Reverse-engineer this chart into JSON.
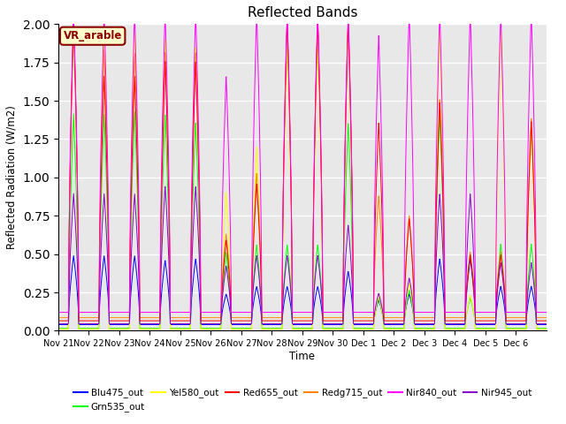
{
  "title": "Reflected Bands",
  "xlabel": "Time",
  "ylabel": "Reflected Radiation (W/m2)",
  "ylim": [
    0,
    2.0
  ],
  "annotation_text": "VR_arable",
  "series_colors": {
    "Blu475_out": "#0000ff",
    "Grn535_out": "#00ff00",
    "Yel580_out": "#ffff00",
    "Red655_out": "#ff0000",
    "Redg715_out": "#ff8800",
    "Nir840_out": "#ff00ff",
    "Nir945_out": "#8800cc"
  },
  "background_color": "#e8e8e8",
  "tick_labels": [
    "Nov 21",
    "Nov 22",
    "Nov 23",
    "Nov 24",
    "Nov 25",
    "Nov 26",
    "Nov 27",
    "Nov 28",
    "Nov 29",
    "Nov 30",
    "Dec 1",
    "Dec 2",
    "Dec 3",
    "Dec 4",
    "Dec 5",
    "Dec 6"
  ],
  "day_peaks_blu": [
    0.45,
    0.45,
    0.45,
    0.42,
    0.43,
    0.2,
    0.25,
    0.25,
    0.25,
    0.35,
    0.16,
    0.2,
    0.43,
    0.43,
    0.25,
    0.25
  ],
  "day_peaks_grn": [
    1.4,
    1.4,
    1.42,
    1.4,
    1.35,
    0.5,
    0.55,
    0.55,
    0.55,
    1.35,
    0.2,
    0.25,
    1.4,
    0.2,
    0.55,
    0.55
  ],
  "day_peaks_yel": [
    1.97,
    1.94,
    1.94,
    1.9,
    1.85,
    0.9,
    1.2,
    1.85,
    1.85,
    1.95,
    0.22,
    0.3,
    1.97,
    0.22,
    1.95,
    1.3
  ],
  "day_peaks_red": [
    1.97,
    1.6,
    1.6,
    1.7,
    1.7,
    0.53,
    0.9,
    1.97,
    1.97,
    1.97,
    1.3,
    0.67,
    1.43,
    0.43,
    0.43,
    1.3
  ],
  "day_peaks_redg": [
    1.97,
    1.75,
    1.73,
    1.74,
    1.74,
    0.55,
    0.95,
    1.97,
    1.97,
    1.97,
    0.8,
    0.67,
    1.43,
    0.43,
    0.43,
    1.3
  ],
  "day_peaks_nir840": [
    1.97,
    1.97,
    1.97,
    1.97,
    1.97,
    1.55,
    1.97,
    1.97,
    1.97,
    1.97,
    1.82,
    1.97,
    1.97,
    1.97,
    1.97,
    1.97
  ],
  "day_peaks_nir945": [
    0.85,
    0.85,
    0.85,
    0.9,
    0.9,
    0.38,
    0.45,
    0.45,
    0.45,
    0.65,
    0.2,
    0.3,
    0.85,
    0.85,
    0.4,
    0.4
  ],
  "base_blu": 0.04,
  "base_grn": 0.015,
  "base_yel": 0.01,
  "base_red": 0.065,
  "base_redg": 0.085,
  "base_nir840": 0.12,
  "base_nir945": 0.045
}
